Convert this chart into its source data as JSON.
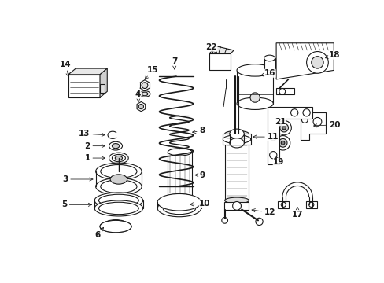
{
  "background_color": "#ffffff",
  "line_color": "#1a1a1a",
  "figsize": [
    4.89,
    3.6
  ],
  "dpi": 100,
  "label_fontsize": 7.5,
  "spring_lw": 1.0,
  "part_lw": 0.8
}
